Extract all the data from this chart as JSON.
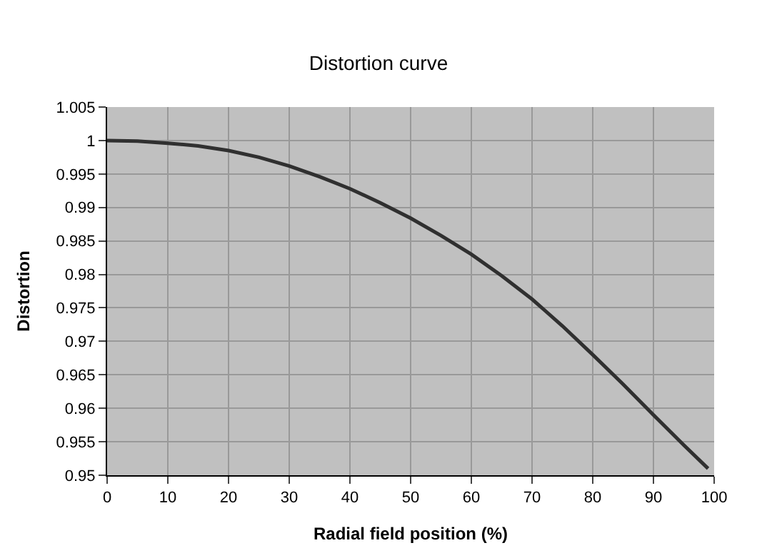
{
  "chart_data": {
    "type": "line",
    "title": "Distortion curve",
    "xlabel": "Radial field position (%)",
    "ylabel": "Distortion",
    "x": [
      0,
      5,
      10,
      15,
      20,
      25,
      30,
      35,
      40,
      45,
      50,
      55,
      60,
      65,
      70,
      75,
      80,
      85,
      90,
      95,
      99
    ],
    "series": [
      {
        "color": "#303030",
        "values": [
          1.0,
          0.9999,
          0.9996,
          0.9992,
          0.9985,
          0.9975,
          0.9962,
          0.9946,
          0.9928,
          0.9907,
          0.9884,
          0.9858,
          0.983,
          0.9798,
          0.9763,
          0.9723,
          0.968,
          0.9636,
          0.959,
          0.9545,
          0.951
        ]
      }
    ],
    "xlim": [
      0,
      100
    ],
    "xticks": [
      0,
      10,
      20,
      30,
      40,
      50,
      60,
      70,
      80,
      90,
      100
    ],
    "ylim": [
      0.95,
      1.005
    ],
    "yticks": [
      0.95,
      0.955,
      0.96,
      0.965,
      0.97,
      0.975,
      0.98,
      0.985,
      0.99,
      0.995,
      1,
      1.005
    ],
    "grid": true,
    "marker": "none",
    "line_style": "solid"
  }
}
